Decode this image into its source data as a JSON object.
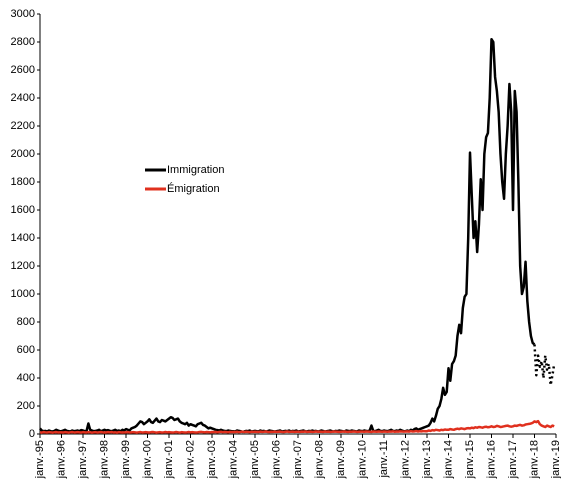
{
  "chart_data": {
    "type": "line",
    "categories": [
      "janv.-95",
      null,
      null,
      null,
      null,
      null,
      null,
      null,
      null,
      null,
      null,
      null,
      "janv.-96",
      null,
      null,
      null,
      null,
      null,
      null,
      null,
      null,
      null,
      null,
      null,
      "janv.-97",
      null,
      null,
      null,
      null,
      null,
      null,
      null,
      null,
      null,
      null,
      null,
      "janv.-98",
      null,
      null,
      null,
      null,
      null,
      null,
      null,
      null,
      null,
      null,
      null,
      "janv.-99",
      null,
      null,
      null,
      null,
      null,
      null,
      null,
      null,
      null,
      null,
      null,
      "janv.-00",
      null,
      null,
      null,
      null,
      null,
      null,
      null,
      null,
      null,
      null,
      null,
      "janv.-01",
      null,
      null,
      null,
      null,
      null,
      null,
      null,
      null,
      null,
      null,
      null,
      "janv.-02",
      null,
      null,
      null,
      null,
      null,
      null,
      null,
      null,
      null,
      null,
      null,
      "janv.-03",
      null,
      null,
      null,
      null,
      null,
      null,
      null,
      null,
      null,
      null,
      null,
      "janv.-04",
      null,
      null,
      null,
      null,
      null,
      null,
      null,
      null,
      null,
      null,
      null,
      "janv.-05",
      null,
      null,
      null,
      null,
      null,
      null,
      null,
      null,
      null,
      null,
      null,
      "janv.-06",
      null,
      null,
      null,
      null,
      null,
      null,
      null,
      null,
      null,
      null,
      null,
      "janv.-07",
      null,
      null,
      null,
      null,
      null,
      null,
      null,
      null,
      null,
      null,
      null,
      "janv.-08",
      null,
      null,
      null,
      null,
      null,
      null,
      null,
      null,
      null,
      null,
      null,
      "janv.-09",
      null,
      null,
      null,
      null,
      null,
      null,
      null,
      null,
      null,
      null,
      null,
      "janv.-10",
      null,
      null,
      null,
      null,
      null,
      null,
      null,
      null,
      null,
      null,
      null,
      "janv.-11",
      null,
      null,
      null,
      null,
      null,
      null,
      null,
      null,
      null,
      null,
      null,
      "janv.-12",
      null,
      null,
      null,
      null,
      null,
      null,
      null,
      null,
      null,
      null,
      null,
      "janv.-13",
      null,
      null,
      null,
      null,
      null,
      null,
      null,
      null,
      null,
      null,
      null,
      "janv.-14",
      null,
      null,
      null,
      null,
      null,
      null,
      null,
      null,
      null,
      null,
      null,
      "janv.-15",
      null,
      null,
      null,
      null,
      null,
      null,
      null,
      null,
      null,
      null,
      null,
      "janv.-16",
      null,
      null,
      null,
      null,
      null,
      null,
      null,
      null,
      null,
      null,
      null,
      "janv.-17",
      null,
      null,
      null,
      null,
      null,
      null,
      null,
      null,
      null,
      null,
      null,
      "janv.-18",
      null,
      null,
      null,
      null,
      null,
      null,
      null,
      null,
      null,
      null,
      null,
      "janv.-19"
    ],
    "series": [
      {
        "name": "Immigration",
        "color": "#000000",
        "values": [
          40,
          25,
          20,
          22,
          18,
          25,
          20,
          18,
          22,
          30,
          25,
          20,
          20,
          25,
          30,
          22,
          20,
          18,
          25,
          20,
          22,
          25,
          20,
          28,
          25,
          20,
          22,
          75,
          30,
          25,
          20,
          22,
          25,
          30,
          20,
          25,
          30,
          25,
          28,
          22,
          20,
          25,
          30,
          22,
          25,
          20,
          30,
          25,
          35,
          30,
          25,
          40,
          45,
          50,
          60,
          75,
          90,
          85,
          70,
          80,
          90,
          105,
          85,
          80,
          95,
          110,
          90,
          85,
          100,
          95,
          90,
          100,
          110,
          120,
          115,
          100,
          105,
          110,
          90,
          80,
          75,
          70,
          80,
          60,
          70,
          65,
          60,
          55,
          70,
          75,
          80,
          65,
          60,
          50,
          40,
          45,
          40,
          35,
          30,
          28,
          25,
          30,
          25,
          22,
          20,
          25,
          22,
          20,
          20,
          18,
          25,
          22,
          20,
          15,
          18,
          22,
          20,
          25,
          18,
          20,
          22,
          20,
          18,
          25,
          20,
          22,
          18,
          20,
          25,
          22,
          20,
          18,
          20,
          22,
          25,
          18,
          20,
          22,
          20,
          25,
          18,
          22,
          20,
          25,
          18,
          20,
          22,
          25,
          20,
          18,
          22,
          20,
          25,
          20,
          22,
          18,
          20,
          25,
          22,
          18,
          20,
          22,
          25,
          20,
          18,
          22,
          20,
          25,
          22,
          20,
          18,
          25,
          22,
          20,
          25,
          22,
          20,
          18,
          25,
          22,
          20,
          25,
          22,
          20,
          25,
          60,
          22,
          20,
          25,
          30,
          22,
          20,
          25,
          22,
          20,
          25,
          30,
          22,
          20,
          25,
          22,
          30,
          25,
          20,
          20,
          25,
          20,
          30,
          25,
          35,
          40,
          30,
          35,
          40,
          45,
          50,
          55,
          60,
          80,
          110,
          90,
          130,
          180,
          200,
          250,
          330,
          280,
          300,
          470,
          380,
          500,
          520,
          560,
          700,
          780,
          720,
          900,
          980,
          1000,
          1400,
          2010,
          1700,
          1400,
          1520,
          1300,
          1500,
          1820,
          1600,
          2000,
          2120,
          2150,
          2400,
          2820,
          2800,
          2550,
          2450,
          2300,
          2000,
          1800,
          1680,
          2000,
          2200,
          2500,
          2300,
          1600,
          2450,
          2300,
          1800,
          1200,
          1000,
          1050,
          1230,
          950,
          800,
          700,
          650,
          640,
          null,
          null,
          null,
          null,
          null,
          null,
          null,
          null,
          null,
          null,
          null,
          null
        ]
      },
      {
        "color": "#000000",
        "dashed": true,
        "values": [
          null,
          null,
          null,
          null,
          null,
          null,
          null,
          null,
          null,
          null,
          null,
          null,
          null,
          null,
          null,
          null,
          null,
          null,
          null,
          null,
          null,
          null,
          null,
          null,
          null,
          null,
          null,
          null,
          null,
          null,
          null,
          null,
          null,
          null,
          null,
          null,
          null,
          null,
          null,
          null,
          null,
          null,
          null,
          null,
          null,
          null,
          null,
          null,
          null,
          null,
          null,
          null,
          null,
          null,
          null,
          null,
          null,
          null,
          null,
          null,
          null,
          null,
          null,
          null,
          null,
          null,
          null,
          null,
          null,
          null,
          null,
          null,
          null,
          null,
          null,
          null,
          null,
          null,
          null,
          null,
          null,
          null,
          null,
          null,
          null,
          null,
          null,
          null,
          null,
          null,
          null,
          null,
          null,
          null,
          null,
          null,
          null,
          null,
          null,
          null,
          null,
          null,
          null,
          null,
          null,
          null,
          null,
          null,
          null,
          null,
          null,
          null,
          null,
          null,
          null,
          null,
          null,
          null,
          null,
          null,
          null,
          null,
          null,
          null,
          null,
          null,
          null,
          null,
          null,
          null,
          null,
          null,
          null,
          null,
          null,
          null,
          null,
          null,
          null,
          null,
          null,
          null,
          null,
          null,
          null,
          null,
          null,
          null,
          null,
          null,
          null,
          null,
          null,
          null,
          null,
          null,
          null,
          null,
          null,
          null,
          null,
          null,
          null,
          null,
          null,
          null,
          null,
          null,
          null,
          null,
          null,
          null,
          null,
          null,
          null,
          null,
          null,
          null,
          null,
          null,
          null,
          null,
          null,
          null,
          null,
          null,
          null,
          null,
          null,
          null,
          null,
          null,
          null,
          null,
          null,
          null,
          null,
          null,
          null,
          null,
          null,
          null,
          null,
          null,
          null,
          null,
          null,
          null,
          null,
          null,
          null,
          null,
          null,
          null,
          null,
          null,
          null,
          null,
          null,
          null,
          null,
          null,
          null,
          null,
          null,
          null,
          null,
          null,
          null,
          null,
          null,
          null,
          null,
          null,
          null,
          null,
          null,
          null,
          null,
          null,
          null,
          null,
          null,
          null,
          null,
          null,
          null,
          null,
          null,
          null,
          null,
          null,
          null,
          null,
          null,
          null,
          null,
          null,
          null,
          null,
          null,
          null,
          null,
          null,
          null,
          null,
          null,
          null,
          null,
          null,
          null,
          null,
          null,
          null,
          null,
          null,
          640,
          420,
          560,
          480,
          520,
          400,
          560,
          460,
          500,
          350,
          420,
          500,
          null
        ]
      },
      {
        "name": "Émigration",
        "color": "#e0301e",
        "values": [
          12,
          10,
          14,
          12,
          11,
          13,
          12,
          10,
          12,
          14,
          11,
          12,
          12,
          11,
          13,
          12,
          10,
          12,
          14,
          11,
          12,
          13,
          12,
          11,
          13,
          12,
          11,
          14,
          12,
          10,
          12,
          13,
          11,
          12,
          14,
          12,
          11,
          12,
          13,
          12,
          14,
          11,
          12,
          10,
          13,
          12,
          11,
          12,
          12,
          14,
          11,
          12,
          13,
          12,
          10,
          12,
          14,
          11,
          12,
          13,
          12,
          11,
          13,
          14,
          12,
          10,
          12,
          13,
          11,
          12,
          14,
          12,
          13,
          12,
          11,
          12,
          14,
          12,
          10,
          13,
          12,
          11,
          12,
          14,
          12,
          13,
          12,
          11,
          12,
          14,
          15,
          13,
          12,
          14,
          13,
          12,
          14,
          13,
          15,
          12,
          14,
          16,
          13,
          15,
          14,
          12,
          15,
          14,
          15,
          14,
          16,
          13,
          15,
          17,
          14,
          16,
          15,
          13,
          16,
          15,
          16,
          15,
          14,
          17,
          15,
          16,
          18,
          15,
          14,
          16,
          15,
          17,
          15,
          16,
          17,
          15,
          14,
          16,
          18,
          15,
          16,
          17,
          15,
          16,
          16,
          15,
          17,
          16,
          18,
          15,
          16,
          17,
          15,
          16,
          18,
          16,
          17,
          16,
          15,
          18,
          16,
          17,
          15,
          16,
          18,
          17,
          16,
          15,
          16,
          17,
          18,
          16,
          15,
          17,
          16,
          18,
          17,
          15,
          16,
          17,
          17,
          16,
          18,
          17,
          16,
          15,
          18,
          17,
          16,
          18,
          17,
          16,
          18,
          17,
          16,
          18,
          17,
          19,
          16,
          18,
          17,
          19,
          18,
          17,
          18,
          19,
          17,
          20,
          18,
          19,
          21,
          18,
          20,
          19,
          21,
          20,
          20,
          25,
          22,
          28,
          25,
          30,
          28,
          25,
          30,
          28,
          32,
          30,
          30,
          35,
          32,
          30,
          35,
          38,
          35,
          40,
          38,
          35,
          40,
          42,
          40,
          45,
          42,
          48,
          45,
          50,
          48,
          45,
          50,
          52,
          48,
          50,
          55,
          50,
          52,
          58,
          55,
          50,
          52,
          55,
          58,
          60,
          55,
          52,
          55,
          60,
          58,
          62,
          65,
          60,
          62,
          68,
          70,
          72,
          75,
          80,
          90,
          85,
          92,
          70,
          60,
          55,
          50,
          60,
          55,
          50,
          60,
          55,
          null
        ]
      }
    ],
    "ylim": [
      0,
      3000
    ],
    "yticks": [
      0,
      200,
      400,
      600,
      800,
      1000,
      1200,
      1400,
      1600,
      1800,
      2000,
      2200,
      2400,
      2600,
      2800,
      3000
    ],
    "grid": false
  }
}
